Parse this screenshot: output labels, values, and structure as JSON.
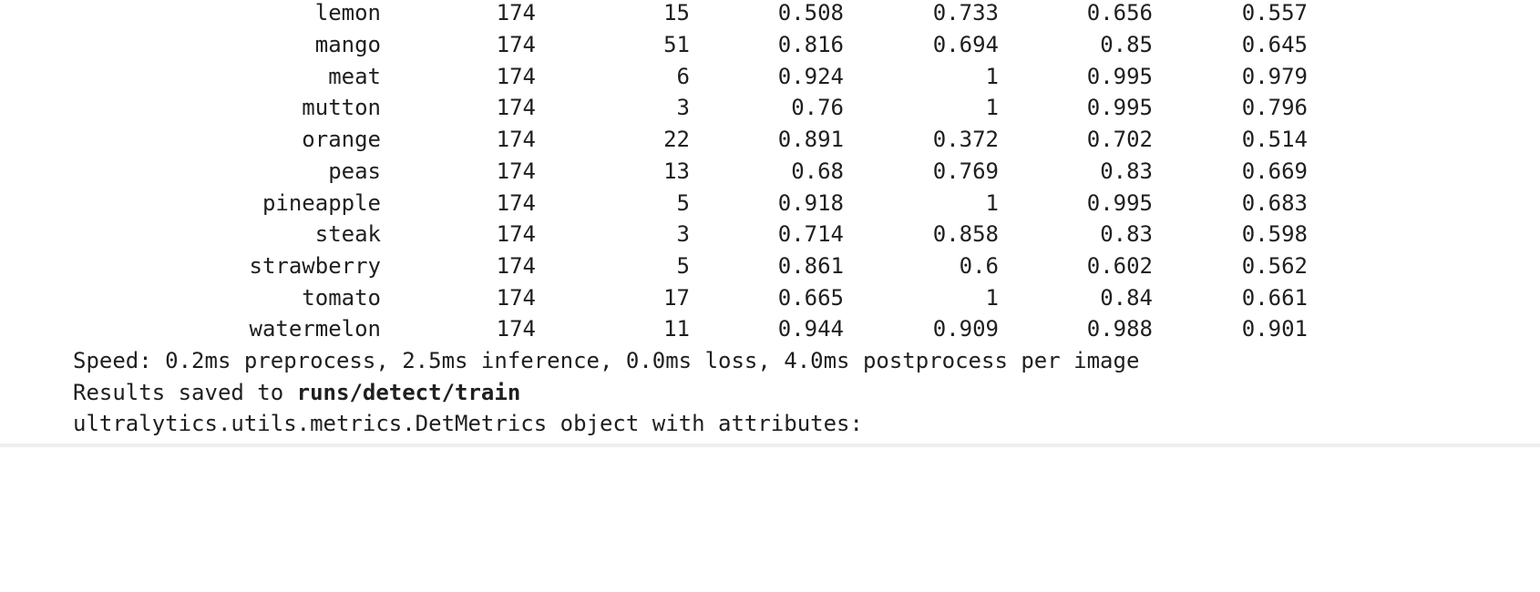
{
  "table": {
    "rows": [
      {
        "class": "lemon",
        "images": "174",
        "instances": "15",
        "p": "0.508",
        "r": "0.733",
        "map50": "0.656",
        "map50_95": "0.557"
      },
      {
        "class": "mango",
        "images": "174",
        "instances": "51",
        "p": "0.816",
        "r": "0.694",
        "map50": "0.85",
        "map50_95": "0.645"
      },
      {
        "class": "meat",
        "images": "174",
        "instances": "6",
        "p": "0.924",
        "r": "1",
        "map50": "0.995",
        "map50_95": "0.979"
      },
      {
        "class": "mutton",
        "images": "174",
        "instances": "3",
        "p": "0.76",
        "r": "1",
        "map50": "0.995",
        "map50_95": "0.796"
      },
      {
        "class": "orange",
        "images": "174",
        "instances": "22",
        "p": "0.891",
        "r": "0.372",
        "map50": "0.702",
        "map50_95": "0.514"
      },
      {
        "class": "peas",
        "images": "174",
        "instances": "13",
        "p": "0.68",
        "r": "0.769",
        "map50": "0.83",
        "map50_95": "0.669"
      },
      {
        "class": "pineapple",
        "images": "174",
        "instances": "5",
        "p": "0.918",
        "r": "1",
        "map50": "0.995",
        "map50_95": "0.683"
      },
      {
        "class": "steak",
        "images": "174",
        "instances": "3",
        "p": "0.714",
        "r": "0.858",
        "map50": "0.83",
        "map50_95": "0.598"
      },
      {
        "class": "strawberry",
        "images": "174",
        "instances": "5",
        "p": "0.861",
        "r": "0.6",
        "map50": "0.602",
        "map50_95": "0.562"
      },
      {
        "class": "tomato",
        "images": "174",
        "instances": "17",
        "p": "0.665",
        "r": "1",
        "map50": "0.84",
        "map50_95": "0.661"
      },
      {
        "class": "watermelon",
        "images": "174",
        "instances": "11",
        "p": "0.944",
        "r": "0.909",
        "map50": "0.988",
        "map50_95": "0.901"
      }
    ]
  },
  "log": {
    "speed": "Speed: 0.2ms preprocess, 2.5ms inference, 0.0ms loss, 4.0ms postprocess per image",
    "results_prefix": "Results saved to ",
    "results_path": "runs/detect/train",
    "metrics_object": "ultralytics.utils.metrics.DetMetrics object with attributes:"
  }
}
